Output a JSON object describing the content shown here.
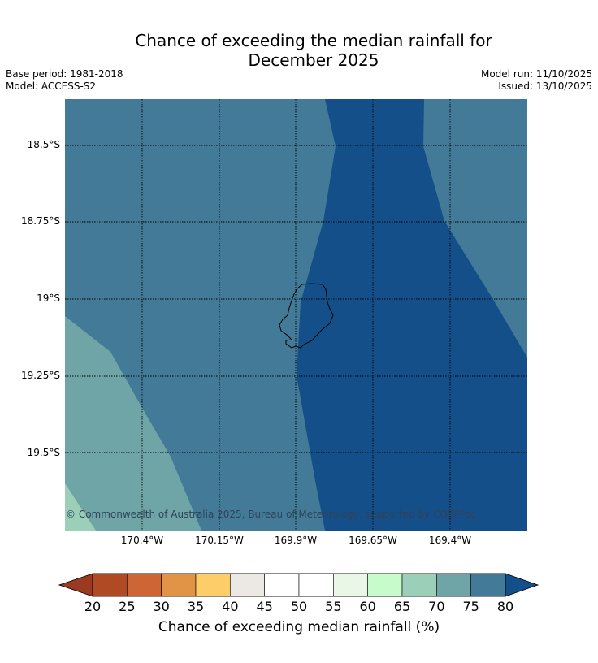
{
  "title_line1": "Chance of exceeding the median rainfall for",
  "title_line2": "December 2025",
  "base_period": "Base period: 1981-2018",
  "model": "Model: ACCESS-S2",
  "model_run": "Model run: 11/10/2025",
  "issued": "Issued: 13/10/2025",
  "copyright": "© Commonwealth of Australia 2025, Bureau of Meteorology, supported by COSPPac",
  "map": {
    "lat_labels": [
      "18.5°S",
      "18.75°S",
      "19°S",
      "19.25°S",
      "19.5°S"
    ],
    "lon_labels": [
      "170.4°W",
      "170.15°W",
      "169.9°W",
      "169.65°W",
      "169.4°W"
    ],
    "region_values_percent": [
      65,
      70,
      75,
      80
    ]
  },
  "colorbar": {
    "ticks": [
      "20",
      "25",
      "30",
      "35",
      "40",
      "45",
      "50",
      "55",
      "60",
      "65",
      "70",
      "75",
      "80"
    ],
    "colors": [
      "#b04a25",
      "#cd6634",
      "#e19446",
      "#fdcd6a",
      "#ece8e4",
      "#ffffff",
      "#ffffff",
      "#e9f7e7",
      "#c7fbcc",
      "#9ccfb7",
      "#6fa5a6",
      "#437a98"
    ],
    "under_color": "#9a3a20",
    "over_color": "#154f89",
    "label": "Chance of exceeding median rainfall (%)"
  }
}
